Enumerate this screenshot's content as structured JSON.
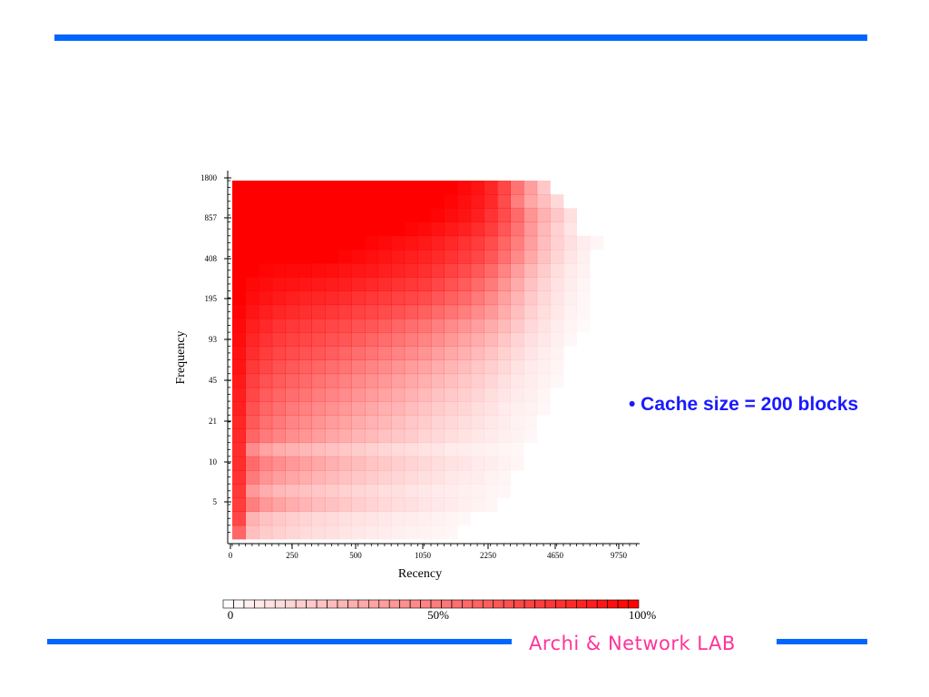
{
  "slide": {
    "bullet": "• Cache size = 200 blocks",
    "footer": "Archi & Network LAB"
  },
  "colors": {
    "rule": "#0066ff",
    "footer": "#ff3399",
    "bullet": "#1a1aff",
    "heat": "#ff0000"
  },
  "chart_data": {
    "type": "heatmap",
    "title": "",
    "xlabel": "Recency",
    "ylabel": "Frequency",
    "x_ticks": [
      "0",
      "250",
      "500",
      "1050",
      "2250",
      "4650",
      "9750"
    ],
    "y_ticks": [
      "5",
      "10",
      "21",
      "45",
      "93",
      "195",
      "408",
      "857",
      "1800"
    ],
    "value_range": [
      0,
      100
    ],
    "value_unit": "%",
    "color_scale": {
      "min_label": "0",
      "mid_label": "50%",
      "max_label": "100%"
    },
    "grid": false,
    "cell_columns": 30,
    "cell_rows": 26,
    "intensity_rows_top_to_bottom": [
      [
        100,
        100,
        100,
        100,
        100,
        100,
        100,
        100,
        100,
        100,
        100,
        100,
        100,
        100,
        100,
        100,
        100,
        96,
        92,
        85,
        72,
        55,
        38,
        22,
        0,
        0,
        0,
        0,
        0,
        0
      ],
      [
        100,
        100,
        100,
        100,
        100,
        100,
        100,
        100,
        100,
        100,
        100,
        100,
        100,
        100,
        100,
        100,
        98,
        94,
        90,
        84,
        70,
        50,
        35,
        25,
        15,
        0,
        0,
        0,
        0,
        0
      ],
      [
        100,
        100,
        100,
        100,
        100,
        100,
        100,
        100,
        100,
        100,
        100,
        100,
        100,
        100,
        100,
        98,
        95,
        92,
        88,
        80,
        70,
        58,
        42,
        30,
        22,
        12,
        0,
        0,
        0,
        0
      ],
      [
        100,
        100,
        100,
        100,
        100,
        100,
        100,
        100,
        100,
        100,
        100,
        100,
        100,
        98,
        96,
        93,
        90,
        87,
        82,
        76,
        66,
        55,
        40,
        28,
        18,
        10,
        0,
        0,
        0,
        0
      ],
      [
        100,
        100,
        100,
        100,
        100,
        100,
        100,
        100,
        100,
        100,
        98,
        96,
        94,
        92,
        90,
        87,
        84,
        80,
        76,
        70,
        60,
        50,
        38,
        26,
        18,
        12,
        7,
        4,
        0,
        0
      ],
      [
        100,
        100,
        100,
        100,
        100,
        100,
        100,
        100,
        98,
        96,
        94,
        92,
        90,
        88,
        86,
        83,
        80,
        76,
        72,
        66,
        56,
        46,
        34,
        24,
        16,
        10,
        6,
        0,
        0,
        0
      ],
      [
        100,
        100,
        98,
        97,
        96,
        96,
        95,
        94,
        92,
        91,
        90,
        88,
        86,
        84,
        81,
        78,
        74,
        70,
        65,
        58,
        48,
        38,
        28,
        20,
        13,
        8,
        5,
        0,
        0,
        0
      ],
      [
        100,
        97,
        95,
        93,
        92,
        91,
        90,
        89,
        88,
        86,
        84,
        82,
        80,
        78,
        76,
        72,
        68,
        64,
        58,
        52,
        42,
        33,
        24,
        17,
        11,
        7,
        4,
        0,
        0,
        0
      ],
      [
        100,
        95,
        92,
        90,
        88,
        86,
        85,
        84,
        82,
        80,
        78,
        76,
        74,
        72,
        70,
        66,
        62,
        58,
        52,
        46,
        37,
        29,
        21,
        15,
        10,
        6,
        3,
        0,
        0,
        0
      ],
      [
        98,
        92,
        88,
        85,
        83,
        81,
        80,
        78,
        76,
        74,
        72,
        70,
        68,
        65,
        62,
        58,
        54,
        50,
        45,
        40,
        32,
        25,
        18,
        13,
        9,
        5,
        3,
        0,
        0,
        0
      ],
      [
        96,
        88,
        84,
        80,
        78,
        76,
        74,
        72,
        70,
        68,
        66,
        63,
        60,
        57,
        54,
        50,
        46,
        42,
        38,
        33,
        27,
        21,
        15,
        11,
        7,
        4,
        2,
        0,
        0,
        0
      ],
      [
        95,
        85,
        80,
        76,
        74,
        72,
        70,
        68,
        66,
        63,
        60,
        57,
        54,
        51,
        48,
        44,
        40,
        36,
        32,
        28,
        22,
        17,
        12,
        9,
        6,
        3,
        0,
        0,
        0,
        0
      ],
      [
        93,
        82,
        76,
        72,
        70,
        68,
        66,
        63,
        60,
        57,
        54,
        51,
        48,
        45,
        42,
        38,
        34,
        31,
        27,
        23,
        18,
        14,
        10,
        7,
        5,
        0,
        0,
        0,
        0,
        0
      ],
      [
        92,
        78,
        72,
        68,
        65,
        62,
        60,
        57,
        54,
        51,
        48,
        45,
        42,
        39,
        36,
        32,
        29,
        26,
        22,
        19,
        15,
        11,
        8,
        6,
        4,
        0,
        0,
        0,
        0,
        0
      ],
      [
        90,
        75,
        68,
        64,
        61,
        58,
        55,
        52,
        49,
        46,
        43,
        40,
        37,
        34,
        31,
        28,
        25,
        22,
        19,
        16,
        12,
        9,
        7,
        5,
        3,
        0,
        0,
        0,
        0,
        0
      ],
      [
        88,
        72,
        64,
        60,
        57,
        54,
        51,
        48,
        45,
        42,
        39,
        36,
        33,
        30,
        27,
        24,
        21,
        19,
        16,
        13,
        10,
        8,
        6,
        4,
        0,
        0,
        0,
        0,
        0,
        0
      ],
      [
        87,
        68,
        60,
        56,
        52,
        49,
        46,
        43,
        40,
        37,
        34,
        31,
        29,
        26,
        23,
        20,
        18,
        16,
        13,
        11,
        8,
        6,
        5,
        3,
        0,
        0,
        0,
        0,
        0,
        0
      ],
      [
        85,
        65,
        56,
        52,
        48,
        45,
        42,
        39,
        36,
        33,
        30,
        28,
        25,
        22,
        20,
        17,
        15,
        13,
        11,
        9,
        7,
        5,
        4,
        0,
        0,
        0,
        0,
        0,
        0,
        0
      ],
      [
        84,
        60,
        52,
        48,
        44,
        41,
        38,
        35,
        32,
        29,
        27,
        24,
        22,
        20,
        17,
        15,
        13,
        11,
        9,
        8,
        6,
        5,
        3,
        0,
        0,
        0,
        0,
        0,
        0,
        0
      ],
      [
        82,
        45,
        36,
        32,
        30,
        28,
        26,
        24,
        22,
        20,
        18,
        16,
        14,
        13,
        11,
        10,
        8,
        7,
        6,
        5,
        4,
        3,
        0,
        0,
        0,
        0,
        0,
        0,
        0,
        0
      ],
      [
        82,
        58,
        48,
        44,
        40,
        37,
        34,
        31,
        28,
        26,
        23,
        21,
        19,
        17,
        15,
        13,
        11,
        10,
        8,
        7,
        5,
        4,
        0,
        0,
        0,
        0,
        0,
        0,
        0,
        0
      ],
      [
        80,
        52,
        42,
        38,
        35,
        32,
        29,
        27,
        24,
        22,
        20,
        18,
        16,
        14,
        12,
        11,
        9,
        8,
        7,
        5,
        4,
        0,
        0,
        0,
        0,
        0,
        0,
        0,
        0,
        0
      ],
      [
        78,
        40,
        32,
        28,
        26,
        24,
        22,
        20,
        18,
        16,
        15,
        13,
        12,
        10,
        9,
        8,
        7,
        6,
        5,
        4,
        3,
        0,
        0,
        0,
        0,
        0,
        0,
        0,
        0,
        0
      ],
      [
        76,
        50,
        40,
        36,
        32,
        29,
        26,
        24,
        21,
        19,
        17,
        15,
        13,
        12,
        10,
        9,
        8,
        6,
        5,
        4,
        0,
        0,
        0,
        0,
        0,
        0,
        0,
        0,
        0,
        0
      ],
      [
        72,
        30,
        24,
        21,
        19,
        17,
        15,
        14,
        12,
        11,
        10,
        9,
        8,
        7,
        6,
        5,
        4,
        3,
        0,
        0,
        0,
        0,
        0,
        0,
        0,
        0,
        0,
        0,
        0,
        0
      ],
      [
        60,
        25,
        20,
        18,
        16,
        14,
        13,
        12,
        10,
        9,
        8,
        7,
        6,
        5,
        5,
        4,
        3,
        0,
        0,
        0,
        0,
        0,
        0,
        0,
        0,
        0,
        0,
        0,
        0,
        0
      ]
    ]
  }
}
